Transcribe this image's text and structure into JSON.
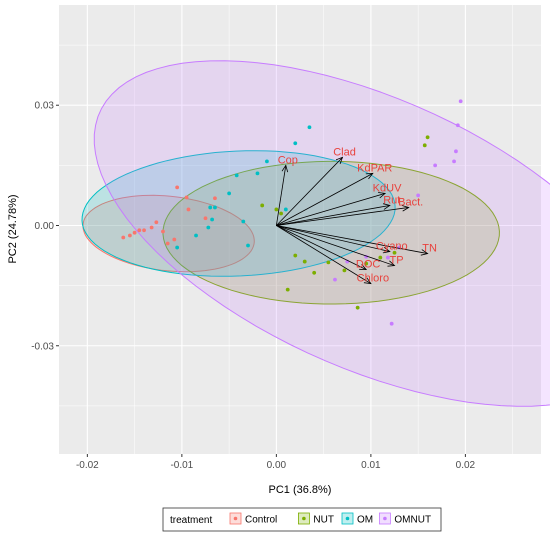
{
  "chart_data": {
    "type": "scatter",
    "xlabel": "PC1 (36.8%)",
    "ylabel": "PC2 (24.78%)",
    "xlim": [
      -0.023,
      0.028
    ],
    "ylim": [
      -0.057,
      0.055
    ],
    "x_ticks": [
      -0.02,
      -0.01,
      0.0,
      0.01,
      0.02
    ],
    "x_tick_labels": [
      "-0.02",
      "-0.01",
      "0.00",
      "0.01",
      "0.02"
    ],
    "y_ticks": [
      -0.03,
      0.0,
      0.03
    ],
    "y_tick_labels": [
      "-0.03",
      "0.00",
      "0.03"
    ],
    "grid": true,
    "legend": {
      "title": "treatment",
      "placement": "bottom",
      "entries": [
        "Control",
        "NUT",
        "OM",
        "OMNUT"
      ]
    },
    "colors": {
      "Control": "#F8766D",
      "NUT": "#7CAE00",
      "OM": "#00BFC4",
      "OMNUT": "#C77CFF",
      "vector": "#000000",
      "vector_label": "#E8423D",
      "panel": "#EBEBEB",
      "grid": "#FFFFFF"
    },
    "series": [
      {
        "name": "Control",
        "ellipse": {
          "center": [
            -0.0114,
            -0.002
          ],
          "rx": 0.0083,
          "ry": 0.0102,
          "angle_deg": 38
        },
        "points": [
          [
            -0.0162,
            -0.003
          ],
          [
            -0.0155,
            -0.0025
          ],
          [
            -0.015,
            -0.0018
          ],
          [
            -0.0145,
            -0.0012
          ],
          [
            -0.014,
            -0.0012
          ],
          [
            -0.0132,
            -0.0005
          ],
          [
            -0.0127,
            0.0008
          ],
          [
            -0.012,
            -0.0015
          ],
          [
            -0.0115,
            -0.0045
          ],
          [
            -0.0108,
            -0.0035
          ],
          [
            -0.0105,
            0.0095
          ],
          [
            -0.0095,
            0.007
          ],
          [
            -0.0093,
            0.004
          ],
          [
            -0.0075,
            0.0018
          ],
          [
            -0.0065,
            0.0068
          ]
        ]
      },
      {
        "name": "NUT",
        "ellipse": {
          "center": [
            0.0058,
            -0.0018
          ],
          "rx": 0.0178,
          "ry": 0.0178,
          "angle_deg": -10
        },
        "points": [
          [
            0.0012,
            -0.016
          ],
          [
            0.002,
            -0.0075
          ],
          [
            0.003,
            -0.009
          ],
          [
            0.004,
            -0.0118
          ],
          [
            0.0055,
            -0.0092
          ],
          [
            0.0072,
            -0.0112
          ],
          [
            0.0086,
            -0.0205
          ],
          [
            0.0095,
            -0.0095
          ],
          [
            0.011,
            -0.008
          ],
          [
            0.0125,
            -0.0068
          ],
          [
            0.0157,
            0.02
          ],
          [
            0.016,
            0.022
          ],
          [
            0.0,
            0.004
          ],
          [
            0.0005,
            0.003
          ],
          [
            -0.0015,
            0.005
          ]
        ]
      },
      {
        "name": "OM",
        "ellipse": {
          "center": [
            -0.004,
            0.003
          ],
          "rx": 0.017,
          "ry": 0.0152,
          "angle_deg": 30
        },
        "points": [
          [
            -0.0105,
            -0.0055
          ],
          [
            -0.0085,
            -0.0025
          ],
          [
            -0.0072,
            -0.0005
          ],
          [
            -0.007,
            0.0045
          ],
          [
            -0.0068,
            0.0015
          ],
          [
            -0.0065,
            0.0045
          ],
          [
            -0.005,
            0.008
          ],
          [
            -0.0042,
            0.0125
          ],
          [
            -0.0035,
            0.001
          ],
          [
            -0.003,
            -0.005
          ],
          [
            -0.002,
            0.013
          ],
          [
            -0.001,
            0.016
          ],
          [
            0.002,
            0.0205
          ],
          [
            0.0035,
            0.0245
          ],
          [
            0.001,
            0.004
          ]
        ]
      },
      {
        "name": "OMNUT",
        "ellipse": {
          "center": [
            0.01,
            -0.002
          ],
          "rx": 0.0225,
          "ry": 0.047,
          "angle_deg": 27
        },
        "points": [
          [
            0.0195,
            0.031
          ],
          [
            0.0192,
            0.025
          ],
          [
            0.019,
            0.0185
          ],
          [
            0.0188,
            0.016
          ],
          [
            0.0168,
            0.015
          ],
          [
            0.015,
            0.0075
          ],
          [
            0.013,
            -0.0055
          ],
          [
            0.0118,
            -0.008
          ],
          [
            0.0095,
            -0.0078
          ],
          [
            0.0075,
            -0.009
          ],
          [
            0.0062,
            -0.0135
          ],
          [
            0.0122,
            -0.0245
          ]
        ]
      }
    ],
    "vectors": [
      {
        "name": "Cop",
        "x": 0.001,
        "y": 0.015
      },
      {
        "name": "Clad",
        "x": 0.007,
        "y": 0.017
      },
      {
        "name": "KdPAR",
        "x": 0.0102,
        "y": 0.013
      },
      {
        "name": "KdUV",
        "x": 0.0115,
        "y": 0.008
      },
      {
        "name": "Rut",
        "x": 0.012,
        "y": 0.005
      },
      {
        "name": "Bact.",
        "x": 0.014,
        "y": 0.0045
      },
      {
        "name": "TN",
        "x": 0.016,
        "y": -0.007
      },
      {
        "name": "Cyano",
        "x": 0.012,
        "y": -0.0065
      },
      {
        "name": "DOC",
        "x": 0.0095,
        "y": -0.011
      },
      {
        "name": "TP",
        "x": 0.0125,
        "y": -0.01
      },
      {
        "name": "Chloro",
        "x": 0.01,
        "y": -0.0145
      }
    ]
  }
}
